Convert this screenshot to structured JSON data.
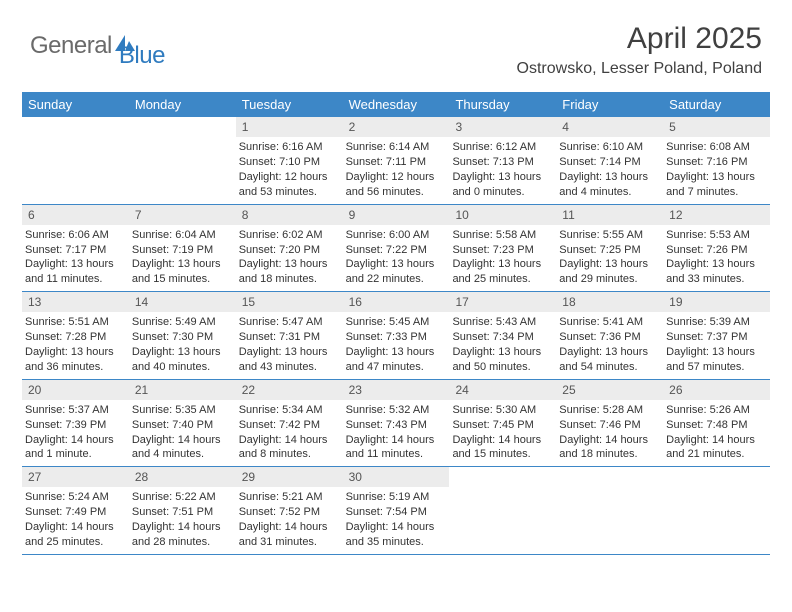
{
  "brand": {
    "text_general": "General",
    "text_blue": "Blue",
    "icon_color": "#2f7bbf"
  },
  "title": "April 2025",
  "location": "Ostrowsko, Lesser Poland, Poland",
  "colors": {
    "header_bg": "#3d87c7",
    "header_text": "#ffffff",
    "daynum_bg": "#ececec",
    "body_text": "#333333",
    "border": "#3d87c7",
    "page_bg": "#ffffff"
  },
  "fonts": {
    "title_size_pt": 22,
    "location_size_pt": 12,
    "header_size_pt": 10,
    "body_size_pt": 8
  },
  "day_headers": [
    "Sunday",
    "Monday",
    "Tuesday",
    "Wednesday",
    "Thursday",
    "Friday",
    "Saturday"
  ],
  "weeks": [
    [
      {
        "n": "",
        "sunrise": "",
        "sunset": "",
        "daylight": ""
      },
      {
        "n": "",
        "sunrise": "",
        "sunset": "",
        "daylight": ""
      },
      {
        "n": "1",
        "sunrise": "Sunrise: 6:16 AM",
        "sunset": "Sunset: 7:10 PM",
        "daylight": "Daylight: 12 hours and 53 minutes."
      },
      {
        "n": "2",
        "sunrise": "Sunrise: 6:14 AM",
        "sunset": "Sunset: 7:11 PM",
        "daylight": "Daylight: 12 hours and 56 minutes."
      },
      {
        "n": "3",
        "sunrise": "Sunrise: 6:12 AM",
        "sunset": "Sunset: 7:13 PM",
        "daylight": "Daylight: 13 hours and 0 minutes."
      },
      {
        "n": "4",
        "sunrise": "Sunrise: 6:10 AM",
        "sunset": "Sunset: 7:14 PM",
        "daylight": "Daylight: 13 hours and 4 minutes."
      },
      {
        "n": "5",
        "sunrise": "Sunrise: 6:08 AM",
        "sunset": "Sunset: 7:16 PM",
        "daylight": "Daylight: 13 hours and 7 minutes."
      }
    ],
    [
      {
        "n": "6",
        "sunrise": "Sunrise: 6:06 AM",
        "sunset": "Sunset: 7:17 PM",
        "daylight": "Daylight: 13 hours and 11 minutes."
      },
      {
        "n": "7",
        "sunrise": "Sunrise: 6:04 AM",
        "sunset": "Sunset: 7:19 PM",
        "daylight": "Daylight: 13 hours and 15 minutes."
      },
      {
        "n": "8",
        "sunrise": "Sunrise: 6:02 AM",
        "sunset": "Sunset: 7:20 PM",
        "daylight": "Daylight: 13 hours and 18 minutes."
      },
      {
        "n": "9",
        "sunrise": "Sunrise: 6:00 AM",
        "sunset": "Sunset: 7:22 PM",
        "daylight": "Daylight: 13 hours and 22 minutes."
      },
      {
        "n": "10",
        "sunrise": "Sunrise: 5:58 AM",
        "sunset": "Sunset: 7:23 PM",
        "daylight": "Daylight: 13 hours and 25 minutes."
      },
      {
        "n": "11",
        "sunrise": "Sunrise: 5:55 AM",
        "sunset": "Sunset: 7:25 PM",
        "daylight": "Daylight: 13 hours and 29 minutes."
      },
      {
        "n": "12",
        "sunrise": "Sunrise: 5:53 AM",
        "sunset": "Sunset: 7:26 PM",
        "daylight": "Daylight: 13 hours and 33 minutes."
      }
    ],
    [
      {
        "n": "13",
        "sunrise": "Sunrise: 5:51 AM",
        "sunset": "Sunset: 7:28 PM",
        "daylight": "Daylight: 13 hours and 36 minutes."
      },
      {
        "n": "14",
        "sunrise": "Sunrise: 5:49 AM",
        "sunset": "Sunset: 7:30 PM",
        "daylight": "Daylight: 13 hours and 40 minutes."
      },
      {
        "n": "15",
        "sunrise": "Sunrise: 5:47 AM",
        "sunset": "Sunset: 7:31 PM",
        "daylight": "Daylight: 13 hours and 43 minutes."
      },
      {
        "n": "16",
        "sunrise": "Sunrise: 5:45 AM",
        "sunset": "Sunset: 7:33 PM",
        "daylight": "Daylight: 13 hours and 47 minutes."
      },
      {
        "n": "17",
        "sunrise": "Sunrise: 5:43 AM",
        "sunset": "Sunset: 7:34 PM",
        "daylight": "Daylight: 13 hours and 50 minutes."
      },
      {
        "n": "18",
        "sunrise": "Sunrise: 5:41 AM",
        "sunset": "Sunset: 7:36 PM",
        "daylight": "Daylight: 13 hours and 54 minutes."
      },
      {
        "n": "19",
        "sunrise": "Sunrise: 5:39 AM",
        "sunset": "Sunset: 7:37 PM",
        "daylight": "Daylight: 13 hours and 57 minutes."
      }
    ],
    [
      {
        "n": "20",
        "sunrise": "Sunrise: 5:37 AM",
        "sunset": "Sunset: 7:39 PM",
        "daylight": "Daylight: 14 hours and 1 minute."
      },
      {
        "n": "21",
        "sunrise": "Sunrise: 5:35 AM",
        "sunset": "Sunset: 7:40 PM",
        "daylight": "Daylight: 14 hours and 4 minutes."
      },
      {
        "n": "22",
        "sunrise": "Sunrise: 5:34 AM",
        "sunset": "Sunset: 7:42 PM",
        "daylight": "Daylight: 14 hours and 8 minutes."
      },
      {
        "n": "23",
        "sunrise": "Sunrise: 5:32 AM",
        "sunset": "Sunset: 7:43 PM",
        "daylight": "Daylight: 14 hours and 11 minutes."
      },
      {
        "n": "24",
        "sunrise": "Sunrise: 5:30 AM",
        "sunset": "Sunset: 7:45 PM",
        "daylight": "Daylight: 14 hours and 15 minutes."
      },
      {
        "n": "25",
        "sunrise": "Sunrise: 5:28 AM",
        "sunset": "Sunset: 7:46 PM",
        "daylight": "Daylight: 14 hours and 18 minutes."
      },
      {
        "n": "26",
        "sunrise": "Sunrise: 5:26 AM",
        "sunset": "Sunset: 7:48 PM",
        "daylight": "Daylight: 14 hours and 21 minutes."
      }
    ],
    [
      {
        "n": "27",
        "sunrise": "Sunrise: 5:24 AM",
        "sunset": "Sunset: 7:49 PM",
        "daylight": "Daylight: 14 hours and 25 minutes."
      },
      {
        "n": "28",
        "sunrise": "Sunrise: 5:22 AM",
        "sunset": "Sunset: 7:51 PM",
        "daylight": "Daylight: 14 hours and 28 minutes."
      },
      {
        "n": "29",
        "sunrise": "Sunrise: 5:21 AM",
        "sunset": "Sunset: 7:52 PM",
        "daylight": "Daylight: 14 hours and 31 minutes."
      },
      {
        "n": "30",
        "sunrise": "Sunrise: 5:19 AM",
        "sunset": "Sunset: 7:54 PM",
        "daylight": "Daylight: 14 hours and 35 minutes."
      },
      {
        "n": "",
        "sunrise": "",
        "sunset": "",
        "daylight": ""
      },
      {
        "n": "",
        "sunrise": "",
        "sunset": "",
        "daylight": ""
      },
      {
        "n": "",
        "sunrise": "",
        "sunset": "",
        "daylight": ""
      }
    ]
  ]
}
